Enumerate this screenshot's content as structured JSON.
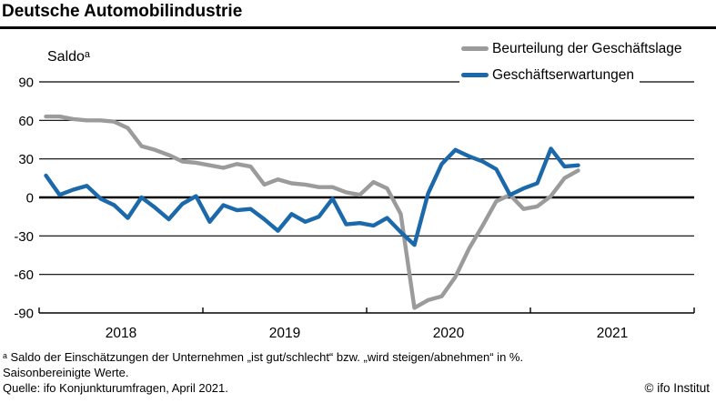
{
  "header": {
    "title": "Deutsche Automobilindustrie"
  },
  "chart_data": {
    "type": "line",
    "ylabel": "Saldoᵃ",
    "yticks": [
      90,
      60,
      30,
      0,
      -30,
      -60,
      -90
    ],
    "ylim": [
      -90,
      90
    ],
    "grid": "horizontal",
    "legend_position": "top-right",
    "x_axis_years": [
      "2018",
      "2019",
      "2020",
      "2021"
    ],
    "x_axis_span_months": 48,
    "months": [
      "2018-01",
      "2018-02",
      "2018-03",
      "2018-04",
      "2018-05",
      "2018-06",
      "2018-07",
      "2018-08",
      "2018-09",
      "2018-10",
      "2018-11",
      "2018-12",
      "2019-01",
      "2019-02",
      "2019-03",
      "2019-04",
      "2019-05",
      "2019-06",
      "2019-07",
      "2019-08",
      "2019-09",
      "2019-10",
      "2019-11",
      "2019-12",
      "2020-01",
      "2020-02",
      "2020-03",
      "2020-04",
      "2020-05",
      "2020-06",
      "2020-07",
      "2020-08",
      "2020-09",
      "2020-10",
      "2020-11",
      "2020-12",
      "2021-01",
      "2021-02",
      "2021-03",
      "2021-04"
    ],
    "series": [
      {
        "name": "Beurteilung der Geschäftslage",
        "color": "#9b9b9b",
        "values": [
          63,
          63,
          61,
          60,
          60,
          59,
          54,
          40,
          37,
          33,
          28,
          27,
          25,
          23,
          26,
          24,
          10,
          14,
          11,
          10,
          8,
          8,
          4,
          2,
          12,
          7,
          -13,
          -86,
          -80,
          -77,
          -62,
          -40,
          -22,
          -3,
          2,
          -9,
          -7,
          1,
          15,
          21
        ]
      },
      {
        "name": "Geschäftserwartungen",
        "color": "#1b69aa",
        "values": [
          17,
          2,
          6,
          9,
          -1,
          -6,
          -16,
          0,
          -8,
          -17,
          -5,
          1,
          -19,
          -6,
          -10,
          -9,
          -17,
          -26,
          -13,
          -19,
          -15,
          -1,
          -21,
          -20,
          -22,
          -16,
          -27,
          -37,
          3,
          26,
          37,
          32,
          28,
          22,
          2,
          7,
          11,
          38,
          24,
          25
        ]
      }
    ]
  },
  "footnotes": {
    "line1": "ᵃ Saldo der Einschätzungen der Unternehmen „ist gut/schlecht“ bzw. „wird steigen/abnehmen“ in %.",
    "line2": "Saisonbereinigte Werte.",
    "line3": "Quelle: ifo Konjunkturumfragen, April 2021."
  },
  "copyright": "© ifo Institut"
}
